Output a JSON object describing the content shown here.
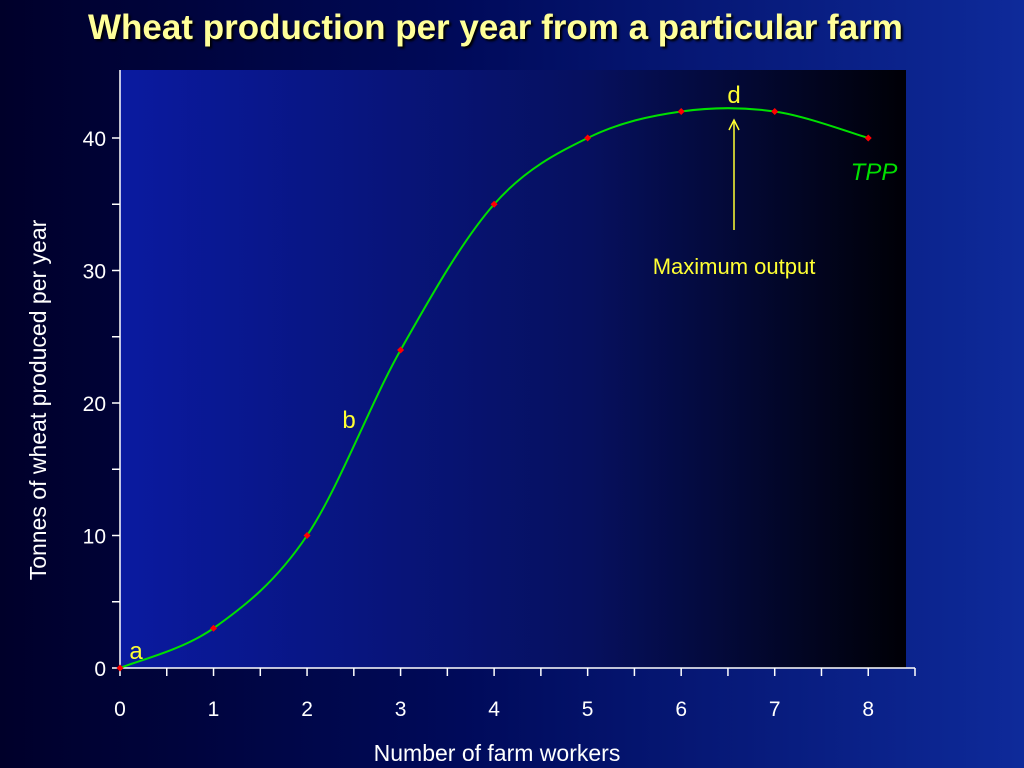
{
  "slide": {
    "title": "Wheat production per year from a particular farm"
  },
  "colors": {
    "title": "#ffff99",
    "curve": "#00e000",
    "points": "#ff0000",
    "annotation": "#ffff33",
    "curve_label": "#00e000",
    "axis": "#ffffff"
  },
  "chart_data": {
    "type": "line",
    "title": "Wheat production per year from a particular farm",
    "xlabel": "Number of farm workers",
    "ylabel": "Tonnes of wheat produced per year",
    "xlim": [
      0,
      8.5
    ],
    "ylim": [
      0,
      45
    ],
    "x_ticks": [
      0,
      1,
      2,
      3,
      4,
      5,
      6,
      7,
      8
    ],
    "y_ticks": [
      0,
      10,
      20,
      30,
      40
    ],
    "grid": false,
    "series": [
      {
        "name": "TPP",
        "x": [
          0,
          1,
          2,
          3,
          4,
          5,
          6,
          7,
          8
        ],
        "y": [
          0,
          3,
          10,
          24,
          35,
          40,
          42,
          42,
          40
        ]
      }
    ],
    "annotations": [
      {
        "text": "a",
        "x": 0,
        "y": 0
      },
      {
        "text": "b",
        "x": 2.5,
        "y": 17
      },
      {
        "text": "d",
        "x": 6.55,
        "y": 42.3
      },
      {
        "text": "Maximum output",
        "x": 6.55,
        "y": 41
      }
    ]
  }
}
